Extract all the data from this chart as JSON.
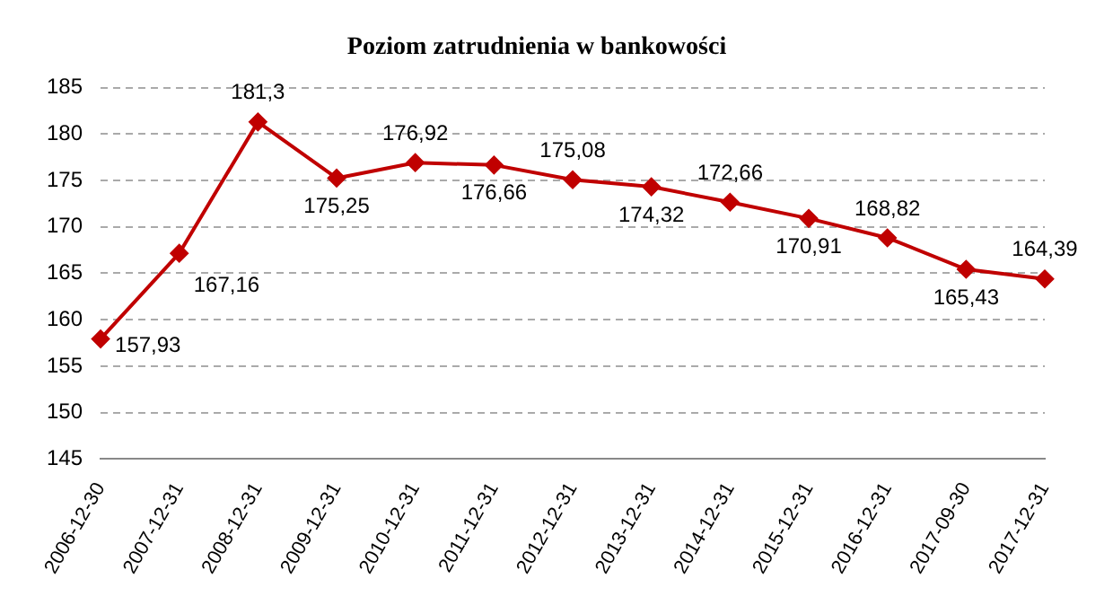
{
  "chart_data": {
    "type": "line",
    "title": "Poziom zatrudnienia w bankowości",
    "categories": [
      "2006-12-30",
      "2007-12-31",
      "2008-12-31",
      "2009-12-31",
      "2010-12-31",
      "2011-12-31",
      "2012-12-31",
      "2013-12-31",
      "2014-12-31",
      "2015-12-31",
      "2016-12-31",
      "2017-09-30",
      "2017-12-31"
    ],
    "series": [
      {
        "color": "#c00000",
        "values": [
          157.93,
          167.16,
          181.3,
          175.25,
          176.92,
          176.66,
          175.08,
          174.32,
          172.66,
          170.91,
          168.82,
          165.43,
          164.39
        ],
        "value_labels": [
          "157,93",
          "167,16",
          "181,3",
          "175,25",
          "176,92",
          "176,66",
          "175,08",
          "174,32",
          "172,66",
          "170,91",
          "168,82",
          "165,43",
          "164,39"
        ]
      }
    ],
    "ylim": [
      145,
      185
    ],
    "yticks": [
      145,
      150,
      155,
      160,
      165,
      170,
      175,
      180,
      185
    ],
    "grid": "y",
    "marker": "diamond",
    "line_style": "solid",
    "legend": false
  }
}
